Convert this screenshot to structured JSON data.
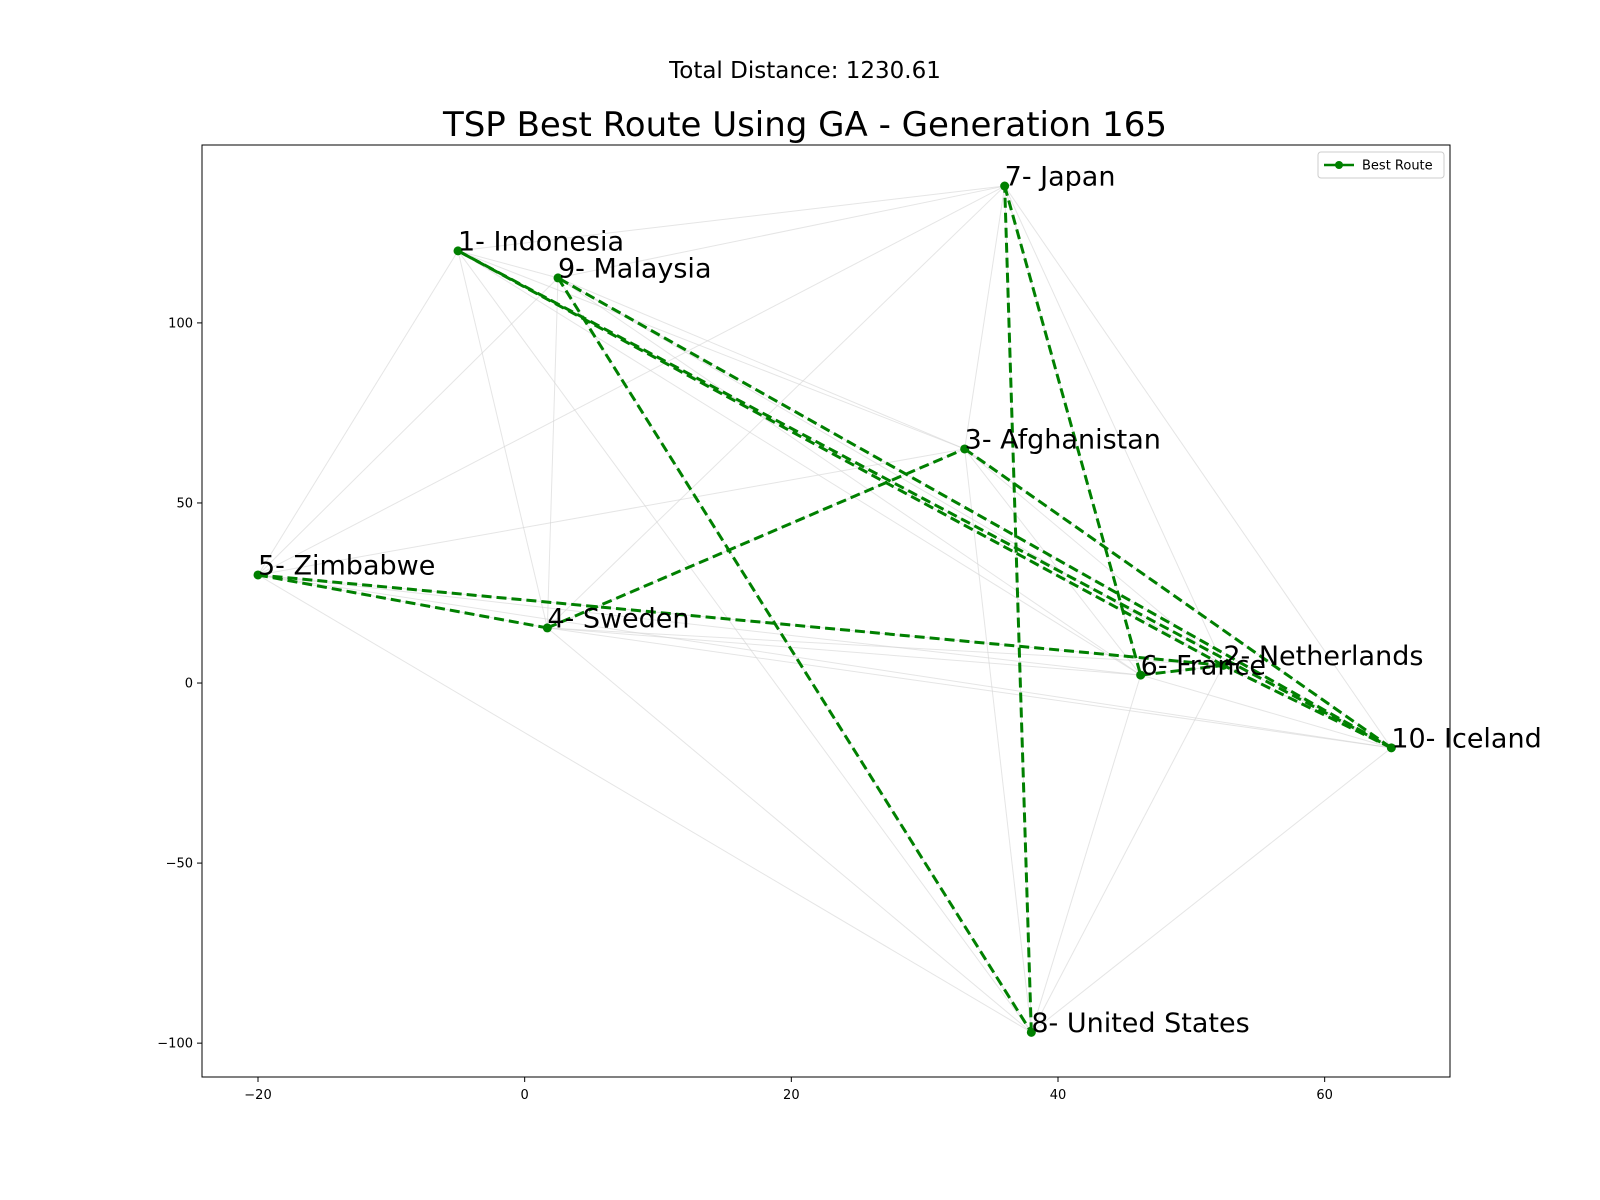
{
  "chart_data": {
    "type": "line",
    "suptitle": "Total Distance: 1230.61",
    "title": "TSP Best Route Using GA - Generation 165",
    "xlabel": "",
    "ylabel": "",
    "xlim": [
      -24.2,
      69.4
    ],
    "ylim": [
      -109.4,
      149.4
    ],
    "xticks": [
      -20,
      0,
      20,
      40,
      60
    ],
    "yticks": [
      -100,
      -50,
      0,
      50,
      100
    ],
    "xtick_labels": [
      "−20",
      "0",
      "20",
      "40",
      "60"
    ],
    "ytick_labels": [
      "−100",
      "−50",
      "0",
      "50",
      "100"
    ],
    "grid": false,
    "legend": {
      "position": "top-right",
      "entries": [
        "Best Route"
      ]
    },
    "colors": {
      "route": "#008000",
      "background_edges": "#d3d3d3"
    },
    "cities": [
      {
        "label": "1- Indonesia",
        "x": -5,
        "y": 120
      },
      {
        "label": "2- Netherlands",
        "x": 52.4,
        "y": 4.9
      },
      {
        "label": "3- Afghanistan",
        "x": 33,
        "y": 65
      },
      {
        "label": "4- Sweden",
        "x": 1.7,
        "y": 15.3
      },
      {
        "label": "5- Zimbabwe",
        "x": -20,
        "y": 30
      },
      {
        "label": "6- France",
        "x": 46.2,
        "y": 2.2
      },
      {
        "label": "7- Japan",
        "x": 36,
        "y": 138
      },
      {
        "label": "8- United States",
        "x": 38,
        "y": -97
      },
      {
        "label": "9- Malaysia",
        "x": 2.5,
        "y": 112.5
      },
      {
        "label": "10- Iceland",
        "x": 65,
        "y": -18
      }
    ],
    "series": [
      {
        "name": "Best Route",
        "route": [
          1,
          10,
          2,
          5,
          4,
          3,
          10,
          9,
          8,
          7,
          6,
          2,
          1
        ]
      }
    ]
  }
}
